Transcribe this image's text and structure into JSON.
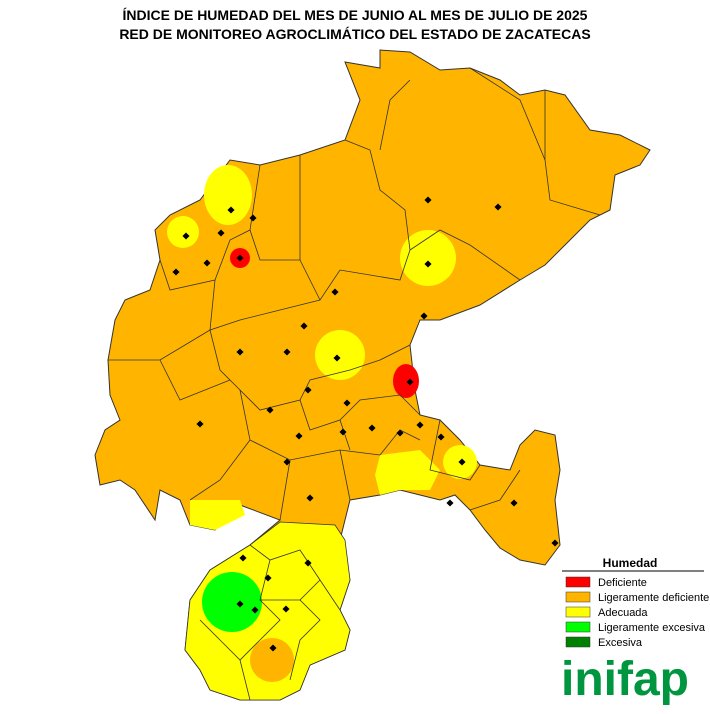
{
  "header": {
    "title_line1": "ÍNDICE DE HUMEDAD DEL MES DE JUNIO AL MES DE JULIO DE 2025",
    "title_line2": "RED DE MONITOREO AGROCLIMÁTICO DEL ESTADO DE ZACATECAS"
  },
  "legend": {
    "title": "Humedad",
    "items": [
      {
        "label": "Deficiente",
        "color": "#ff0000"
      },
      {
        "label": "Ligeramente deficiente",
        "color": "#ffb400"
      },
      {
        "label": "Adecuada",
        "color": "#ffff00"
      },
      {
        "label": "Ligeramente excesiva",
        "color": "#00ff00"
      },
      {
        "label": "Excesiva",
        "color": "#008000"
      }
    ]
  },
  "logo": {
    "text": "inifap"
  }
}
